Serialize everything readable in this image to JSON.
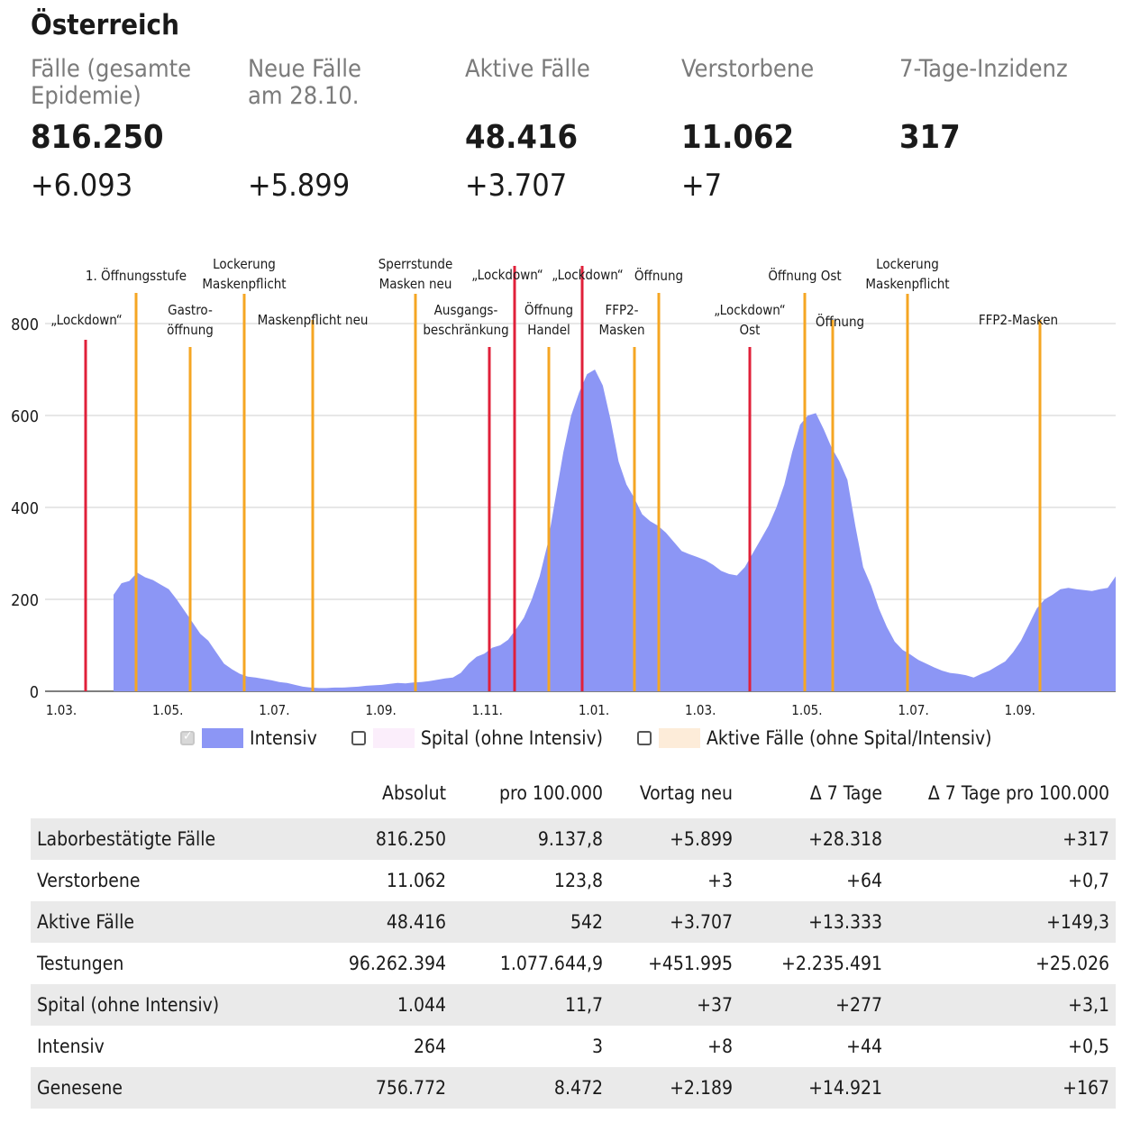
{
  "title": "Österreich",
  "stats": [
    {
      "label": "Fälle (gesamte\nEpidemie)",
      "value": "816.250",
      "delta": "+6.093"
    },
    {
      "label": "Neue Fälle\nam 28.10.",
      "value": "",
      "delta": "+5.899"
    },
    {
      "label": "Aktive Fälle",
      "value": "48.416",
      "delta": "+3.707"
    },
    {
      "label": "Verstorbene",
      "value": "11.062",
      "delta": "+7"
    },
    {
      "label": "7-Tage-Inzidenz",
      "value": "317",
      "delta": ""
    }
  ],
  "chart_data": {
    "type": "area",
    "x_ticks": [
      "1.03.",
      "1.05.",
      "1.07.",
      "1.09.",
      "1.11.",
      "1.01.",
      "1.03.",
      "1.05.",
      "1.07.",
      "1.09."
    ],
    "y_ticks": [
      0,
      200,
      400,
      600,
      800
    ],
    "ylim": [
      0,
      800
    ],
    "grid": true,
    "series": [
      {
        "name": "Intensiv",
        "color": "#8c96f5",
        "values": [
          0,
          0,
          0,
          0,
          0,
          0,
          0,
          0,
          0,
          0,
          0,
          0,
          0,
          0,
          0,
          210,
          235,
          240,
          258,
          248,
          242,
          232,
          222,
          200,
          175,
          150,
          125,
          110,
          85,
          60,
          48,
          38,
          32,
          30,
          27,
          24,
          20,
          18,
          14,
          10,
          8,
          7,
          7,
          8,
          8,
          9,
          10,
          12,
          13,
          14,
          16,
          18,
          17,
          19,
          20,
          22,
          25,
          28,
          30,
          40,
          60,
          75,
          82,
          95,
          100,
          112,
          135,
          160,
          200,
          250,
          320,
          420,
          520,
          600,
          650,
          690,
          700,
          665,
          590,
          500,
          450,
          420,
          385,
          370,
          360,
          345,
          325,
          305,
          298,
          292,
          285,
          275,
          262,
          255,
          252,
          270,
          300,
          330,
          360,
          400,
          450,
          520,
          580,
          600,
          605,
          570,
          530,
          500,
          460,
          360,
          270,
          230,
          180,
          140,
          108,
          90,
          80,
          68,
          60,
          52,
          45,
          40,
          38,
          35,
          30,
          38,
          45,
          55,
          65,
          85,
          110,
          145,
          180,
          200,
          210,
          222,
          225,
          222,
          220,
          218,
          222,
          225,
          250
        ]
      }
    ],
    "events": [
      {
        "label": "„Lockdown“",
        "kind": "lockdown",
        "color": "#e0203a"
      },
      {
        "label": "1. Öffnungsstufe",
        "kind": "opening",
        "color": "#f5a623"
      },
      {
        "label": "Gastro-\nöffnung",
        "kind": "opening",
        "color": "#f5a623"
      },
      {
        "label": "Lockerung\nMaskenpflicht",
        "kind": "opening",
        "color": "#f5a623"
      },
      {
        "label": "Maskenpflicht neu",
        "kind": "opening",
        "color": "#f5a623"
      },
      {
        "label": "Sperrstunde\nMasken neu",
        "kind": "opening",
        "color": "#f5a623"
      },
      {
        "label": "Ausgangs-\nbeschränkung",
        "kind": "lockdown",
        "color": "#e0203a"
      },
      {
        "label": "„Lockdown“",
        "kind": "lockdown",
        "color": "#e0203a"
      },
      {
        "label": "Öffnung\nHandel",
        "kind": "opening",
        "color": "#f5a623"
      },
      {
        "label": "„Lockdown“",
        "kind": "lockdown",
        "color": "#e0203a"
      },
      {
        "label": "FFP2-\nMasken",
        "kind": "opening",
        "color": "#f5a623"
      },
      {
        "label": "Öffnung",
        "kind": "opening",
        "color": "#f5a623"
      },
      {
        "label": "„Lockdown“\nOst",
        "kind": "lockdown",
        "color": "#e0203a"
      },
      {
        "label": "Öffnung Ost",
        "kind": "opening",
        "color": "#f5a623"
      },
      {
        "label": "Öffnung",
        "kind": "opening",
        "color": "#f5a623"
      },
      {
        "label": "Lockerung\nMaskenpflicht",
        "kind": "opening",
        "color": "#f5a623"
      },
      {
        "label": "FFP2-Masken",
        "kind": "opening",
        "color": "#f5a623"
      }
    ]
  },
  "legend": [
    {
      "label": "Intensiv",
      "checked": true,
      "color": "#8c96f5"
    },
    {
      "label": "Spital (ohne Intensiv)",
      "checked": false,
      "color": "#fbeefb"
    },
    {
      "label": "Aktive Fälle (ohne Spital/Intensiv)",
      "checked": false,
      "color": "#fdecd9"
    }
  ],
  "table": {
    "headers": [
      "",
      "Absolut",
      "pro 100.000",
      "Vortag neu",
      "Δ 7 Tage",
      "Δ 7 Tage pro 100.000"
    ],
    "rows": [
      [
        "Laborbestätigte Fälle",
        "816.250",
        "9.137,8",
        "+5.899",
        "+28.318",
        "+317"
      ],
      [
        "Verstorbene",
        "11.062",
        "123,8",
        "+3",
        "+64",
        "+0,7"
      ],
      [
        "Aktive Fälle",
        "48.416",
        "542",
        "+3.707",
        "+13.333",
        "+149,3"
      ],
      [
        "Testungen",
        "96.262.394",
        "1.077.644,9",
        "+451.995",
        "+2.235.491",
        "+25.026"
      ],
      [
        "Spital (ohne Intensiv)",
        "1.044",
        "11,7",
        "+37",
        "+277",
        "+3,1"
      ],
      [
        "Intensiv",
        "264",
        "3",
        "+8",
        "+44",
        "+0,5"
      ],
      [
        "Genesene",
        "756.772",
        "8.472",
        "+2.189",
        "+14.921",
        "+167"
      ]
    ]
  }
}
